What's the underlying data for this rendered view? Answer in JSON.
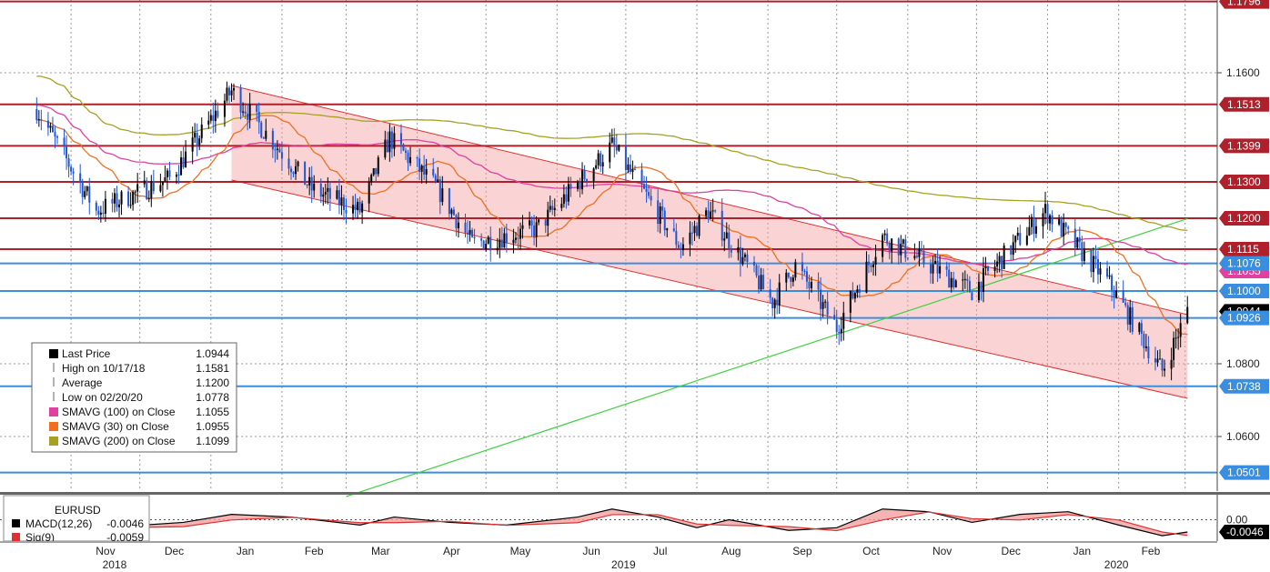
{
  "chart_data": {
    "type": "candlestick",
    "instrument": "EURUSD",
    "x_axis": {
      "months": [
        "Nov",
        "Dec",
        "Jan",
        "Feb",
        "Mar",
        "Apr",
        "May",
        "Jun",
        "Jul",
        "Aug",
        "Sep",
        "Oct",
        "Nov",
        "Dec",
        "Jan",
        "Feb"
      ],
      "years": [
        "2018",
        "2019",
        "2020"
      ]
    },
    "y_axis": {
      "range": [
        1.045,
        1.18
      ],
      "ticks": [
        "1.1600",
        "1.0800",
        "1.0600"
      ]
    },
    "grid": true,
    "price_series": {
      "name": "Last Price",
      "color_up": "#000000",
      "color_down": "#1f55d6",
      "ohlc_keypoints": [
        {
          "date": "2018-10-17",
          "close": 1.15
        },
        {
          "date": "2018-11-12",
          "close": 1.122
        },
        {
          "date": "2018-12-14",
          "close": 1.131
        },
        {
          "date": "2019-01-10",
          "close": 1.155
        },
        {
          "date": "2019-02-14",
          "close": 1.128
        },
        {
          "date": "2019-03-07",
          "close": 1.122
        },
        {
          "date": "2019-03-20",
          "close": 1.142
        },
        {
          "date": "2019-04-10",
          "close": 1.128
        },
        {
          "date": "2019-04-25",
          "close": 1.113
        },
        {
          "date": "2019-05-23",
          "close": 1.117
        },
        {
          "date": "2019-06-25",
          "close": 1.14
        },
        {
          "date": "2019-07-25",
          "close": 1.112
        },
        {
          "date": "2019-08-06",
          "close": 1.122
        },
        {
          "date": "2019-09-03",
          "close": 1.097
        },
        {
          "date": "2019-09-13",
          "close": 1.107
        },
        {
          "date": "2019-10-01",
          "close": 1.09
        },
        {
          "date": "2019-10-21",
          "close": 1.115
        },
        {
          "date": "2019-11-29",
          "close": 1.1
        },
        {
          "date": "2019-12-31",
          "close": 1.122
        },
        {
          "date": "2020-01-28",
          "close": 1.102
        },
        {
          "date": "2020-02-20",
          "close": 1.078
        },
        {
          "date": "2020-03-02",
          "close": 1.0944
        }
      ]
    },
    "moving_averages": [
      {
        "name": "SMAVG (100)  on Close",
        "value": "1.1055",
        "color": "#e040a0"
      },
      {
        "name": "SMAVG (30)  on Close",
        "value": "1.0955",
        "color": "#f07020"
      },
      {
        "name": "SMAVG (200)  on Close",
        "value": "1.1099",
        "color": "#a8a020"
      }
    ],
    "horizontal_levels": [
      {
        "label": "1.1796",
        "color": "#b0202a"
      },
      {
        "label": "1.1513",
        "color": "#b0202a"
      },
      {
        "label": "1.1399",
        "color": "#b0202a"
      },
      {
        "label": "1.1300",
        "color": "#b0202a"
      },
      {
        "label": "1.1200",
        "color": "#b0202a"
      },
      {
        "label": "1.1115",
        "color": "#b0202a"
      },
      {
        "label": "1.1076",
        "color": "#3a8ee0"
      },
      {
        "label": "1.1000",
        "color": "#3a8ee0"
      },
      {
        "label": "1.0926",
        "color": "#3a8ee0"
      },
      {
        "label": "1.0738",
        "color": "#3a8ee0"
      },
      {
        "label": "1.0501",
        "color": "#3a8ee0"
      }
    ],
    "price_tags": [
      {
        "label": "1.1055",
        "color": "#e040a0"
      },
      {
        "label": "1.0944",
        "color": "#000000"
      }
    ],
    "channel": {
      "upper": [
        {
          "date": "2019-01-10",
          "y": 1.1565
        },
        {
          "date": "2020-03-02",
          "y": 1.0935
        }
      ],
      "lower": [
        {
          "date": "2019-01-10",
          "y": 1.1305
        },
        {
          "date": "2020-03-02",
          "y": 1.0705
        }
      ],
      "color": "#f4a0a0"
    },
    "trendline": {
      "points": [
        {
          "date": "2019-03-01",
          "y": 1.0435
        },
        {
          "date": "2020-03-02",
          "y": 1.1199
        }
      ],
      "color": "#40d040"
    },
    "legend": {
      "placement": "bottom-left",
      "entries": [
        {
          "label": "Last Price",
          "value": "1.0944",
          "swatch": "#000000"
        },
        {
          "label": "High on 10/17/18",
          "value": "1.1581"
        },
        {
          "label": "Average",
          "value": "1.1200"
        },
        {
          "label": "Low on 02/20/20",
          "value": "1.0778"
        },
        {
          "label": "SMAVG (100)  on Close",
          "value": "1.1055",
          "swatch": "#e040a0"
        },
        {
          "label": "SMAVG (30)  on Close",
          "value": "1.0955",
          "swatch": "#f07020"
        },
        {
          "label": "SMAVG (200)  on Close",
          "value": "1.1099",
          "swatch": "#a8a020"
        }
      ]
    },
    "macd": {
      "title": "EURUSD",
      "macd_label": "MACD(12,26)",
      "macd_value": "-0.0046",
      "sig_label": "Sig(9)",
      "sig_value": "-0.0059",
      "y_ticks": [
        "0.00"
      ],
      "tag": "-0.0046",
      "range": [
        -0.008,
        0.008
      ],
      "macd_points": [
        {
          "date": "2018-10-17",
          "v": -0.002
        },
        {
          "date": "2018-11-15",
          "v": -0.003
        },
        {
          "date": "2018-12-20",
          "v": -0.001
        },
        {
          "date": "2019-01-10",
          "v": 0.002
        },
        {
          "date": "2019-02-05",
          "v": 0.001
        },
        {
          "date": "2019-03-07",
          "v": -0.002
        },
        {
          "date": "2019-03-22",
          "v": 0.001
        },
        {
          "date": "2019-04-15",
          "v": -0.001
        },
        {
          "date": "2019-05-10",
          "v": -0.002
        },
        {
          "date": "2019-06-10",
          "v": 0.001
        },
        {
          "date": "2019-06-25",
          "v": 0.004
        },
        {
          "date": "2019-07-15",
          "v": 0.001
        },
        {
          "date": "2019-08-01",
          "v": -0.003
        },
        {
          "date": "2019-08-15",
          "v": 0.0
        },
        {
          "date": "2019-09-10",
          "v": -0.004
        },
        {
          "date": "2019-10-01",
          "v": -0.003
        },
        {
          "date": "2019-10-21",
          "v": 0.004
        },
        {
          "date": "2019-11-10",
          "v": 0.003
        },
        {
          "date": "2019-11-29",
          "v": -0.001
        },
        {
          "date": "2019-12-20",
          "v": 0.002
        },
        {
          "date": "2020-01-10",
          "v": 0.003
        },
        {
          "date": "2020-02-01",
          "v": -0.002
        },
        {
          "date": "2020-02-20",
          "v": -0.006
        },
        {
          "date": "2020-03-02",
          "v": -0.0046
        }
      ]
    }
  }
}
